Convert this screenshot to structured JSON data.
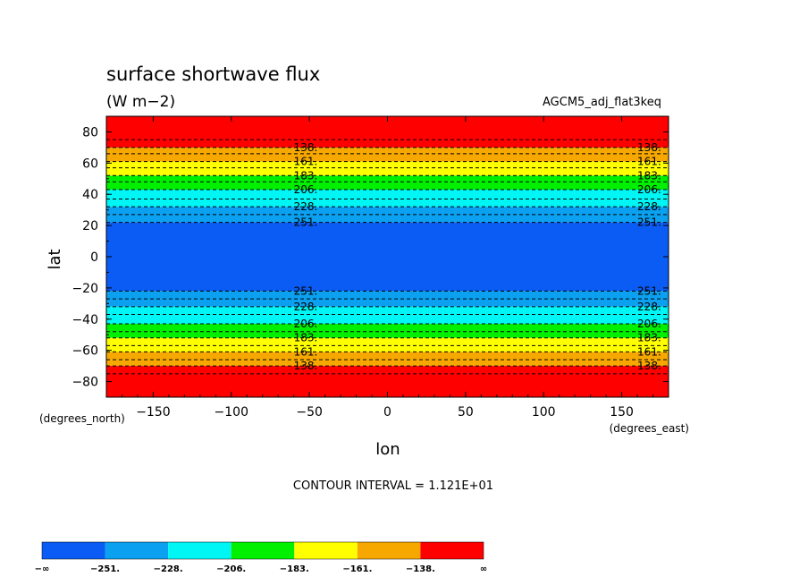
{
  "chart_data": {
    "type": "heatmap",
    "title": "surface shortwave flux",
    "units": "(W m−2)",
    "run_name": "AGCM5_adj_flat3keq",
    "xlabel": "lon",
    "ylabel": "lat",
    "x_units": "(degrees_east)",
    "y_units": "(degrees_north)",
    "xlim": [
      -180,
      180
    ],
    "ylim": [
      -90,
      90
    ],
    "x_ticks": [
      -150,
      -100,
      -50,
      0,
      50,
      100,
      150
    ],
    "x_tick_labels": [
      "−150",
      "−100",
      "−50",
      "0",
      "50",
      "100",
      "150"
    ],
    "y_ticks": [
      80,
      60,
      40,
      20,
      0,
      -20,
      -40,
      -60,
      -80
    ],
    "y_tick_labels": [
      "80",
      "60",
      "40",
      "20",
      "0",
      "−20",
      "−40",
      "−60",
      "−80"
    ],
    "contour_interval_text": "CONTOUR INTERVAL = 1.121E+01",
    "levels": [
      -251,
      -228,
      -206,
      -183,
      -161,
      -138
    ],
    "bands": [
      {
        "level": "−∞",
        "color": "#0a5cf5",
        "lat_min": -22,
        "lat_max": 22
      },
      {
        "level": "-251",
        "color": "#0ba0f0",
        "lat_min": 22,
        "lat_max": 32
      },
      {
        "level": "-228",
        "color": "#00f5f5",
        "lat_min": 32,
        "lat_max": 43
      },
      {
        "level": "-206",
        "color": "#00f000",
        "lat_min": 43,
        "lat_max": 52
      },
      {
        "level": "-183",
        "color": "#ffff00",
        "lat_min": 52,
        "lat_max": 61
      },
      {
        "level": "-161",
        "color": "#f7a800",
        "lat_min": 61,
        "lat_max": 70
      },
      {
        "level": "-138",
        "color": "#ff0000",
        "lat_min": 70,
        "lat_max": 90
      }
    ],
    "contour_lines_lat": [
      22,
      27,
      32,
      37,
      43,
      48,
      52,
      57,
      61,
      66,
      70,
      75
    ],
    "contour_labels": [
      {
        "text": "138.",
        "lat": 70
      },
      {
        "text": "161.",
        "lat": 61
      },
      {
        "text": "183.",
        "lat": 52
      },
      {
        "text": "206.",
        "lat": 43
      },
      {
        "text": "228.",
        "lat": 32
      },
      {
        "text": "251.",
        "lat": 22
      }
    ],
    "contour_label_lons": [
      -60,
      160
    ],
    "colorbar": {
      "colors": [
        "#0a5cf5",
        "#0ba0f0",
        "#00f5f5",
        "#00f000",
        "#ffff00",
        "#f7a800",
        "#ff0000"
      ],
      "labels": [
        "−∞",
        "−251.",
        "−228.",
        "−206.",
        "−183.",
        "−161.",
        "−138.",
        "∞"
      ]
    }
  }
}
